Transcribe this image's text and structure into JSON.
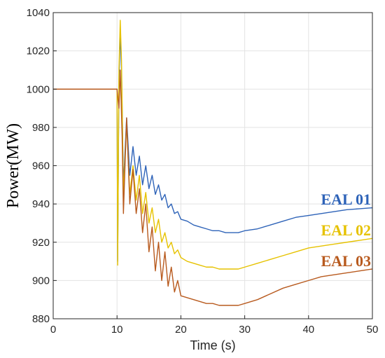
{
  "chart_data": {
    "type": "line",
    "xlabel": "Time (s)",
    "ylabel": "Power(MW)",
    "xlim": [
      0,
      50
    ],
    "ylim": [
      880,
      1040
    ],
    "xticks": [
      0,
      10,
      20,
      30,
      40,
      50
    ],
    "yticks": [
      880,
      900,
      920,
      940,
      960,
      980,
      1000,
      1020,
      1040
    ],
    "grid": true,
    "series": [
      {
        "name": "EAL 01",
        "color": "#2E63B8",
        "points": [
          [
            0,
            1000
          ],
          [
            10,
            1000
          ],
          [
            10.1,
            910
          ],
          [
            10.3,
            1005
          ],
          [
            10.5,
            1030
          ],
          [
            10.7,
            1010
          ],
          [
            11,
            950
          ],
          [
            11.5,
            985
          ],
          [
            12,
            955
          ],
          [
            12.5,
            970
          ],
          [
            13,
            955
          ],
          [
            13.5,
            965
          ],
          [
            14,
            950
          ],
          [
            14.5,
            960
          ],
          [
            15,
            948
          ],
          [
            15.5,
            955
          ],
          [
            16,
            945
          ],
          [
            16.5,
            950
          ],
          [
            17,
            942
          ],
          [
            17.5,
            945
          ],
          [
            18,
            938
          ],
          [
            18.5,
            940
          ],
          [
            19,
            935
          ],
          [
            19.5,
            936
          ],
          [
            20,
            932
          ],
          [
            21,
            931
          ],
          [
            22,
            929
          ],
          [
            23,
            928
          ],
          [
            24,
            927
          ],
          [
            25,
            926
          ],
          [
            26,
            926
          ],
          [
            27,
            925
          ],
          [
            28,
            925
          ],
          [
            29,
            925
          ],
          [
            30,
            926
          ],
          [
            32,
            927
          ],
          [
            34,
            929
          ],
          [
            36,
            931
          ],
          [
            38,
            933
          ],
          [
            40,
            934
          ],
          [
            42,
            935
          ],
          [
            44,
            936
          ],
          [
            46,
            937
          ],
          [
            48,
            937.5
          ],
          [
            50,
            938
          ]
        ]
      },
      {
        "name": "EAL 02",
        "color": "#E6C200",
        "points": [
          [
            0,
            1000
          ],
          [
            10,
            1000
          ],
          [
            10.1,
            908
          ],
          [
            10.3,
            1010
          ],
          [
            10.5,
            1036
          ],
          [
            10.7,
            1015
          ],
          [
            11,
            945
          ],
          [
            11.5,
            982
          ],
          [
            12,
            945
          ],
          [
            12.5,
            960
          ],
          [
            13,
            942
          ],
          [
            13.5,
            955
          ],
          [
            14,
            935
          ],
          [
            14.5,
            946
          ],
          [
            15,
            930
          ],
          [
            15.5,
            938
          ],
          [
            16,
            925
          ],
          [
            16.5,
            932
          ],
          [
            17,
            920
          ],
          [
            17.5,
            925
          ],
          [
            18,
            917
          ],
          [
            18.5,
            920
          ],
          [
            19,
            914
          ],
          [
            19.5,
            916
          ],
          [
            20,
            912
          ],
          [
            21,
            910
          ],
          [
            22,
            909
          ],
          [
            23,
            908
          ],
          [
            24,
            907
          ],
          [
            25,
            907
          ],
          [
            26,
            906
          ],
          [
            27,
            906
          ],
          [
            28,
            906
          ],
          [
            29,
            906
          ],
          [
            30,
            907
          ],
          [
            32,
            909
          ],
          [
            34,
            911
          ],
          [
            36,
            913
          ],
          [
            38,
            915
          ],
          [
            40,
            917
          ],
          [
            42,
            918
          ],
          [
            44,
            919
          ],
          [
            46,
            920
          ],
          [
            48,
            921
          ],
          [
            50,
            922
          ]
        ]
      },
      {
        "name": "EAL 03",
        "color": "#B85A1E",
        "points": [
          [
            0,
            1000
          ],
          [
            10,
            1000
          ],
          [
            10.3,
            990
          ],
          [
            10.5,
            1010
          ],
          [
            10.8,
            975
          ],
          [
            11,
            935
          ],
          [
            11.5,
            985
          ],
          [
            12,
            940
          ],
          [
            12.5,
            958
          ],
          [
            13,
            935
          ],
          [
            13.5,
            948
          ],
          [
            14,
            925
          ],
          [
            14.5,
            940
          ],
          [
            15,
            915
          ],
          [
            15.5,
            928
          ],
          [
            16,
            905
          ],
          [
            16.5,
            920
          ],
          [
            17,
            900
          ],
          [
            17.5,
            915
          ],
          [
            18,
            897
          ],
          [
            18.5,
            907
          ],
          [
            19,
            894
          ],
          [
            19.5,
            900
          ],
          [
            20,
            892
          ],
          [
            21,
            891
          ],
          [
            22,
            890
          ],
          [
            23,
            889
          ],
          [
            24,
            888
          ],
          [
            25,
            888
          ],
          [
            26,
            887
          ],
          [
            27,
            887
          ],
          [
            28,
            887
          ],
          [
            29,
            887
          ],
          [
            30,
            888
          ],
          [
            32,
            890
          ],
          [
            34,
            893
          ],
          [
            36,
            896
          ],
          [
            38,
            898
          ],
          [
            40,
            900
          ],
          [
            42,
            902
          ],
          [
            44,
            903
          ],
          [
            46,
            904
          ],
          [
            48,
            905
          ],
          [
            50,
            906
          ]
        ]
      }
    ]
  }
}
